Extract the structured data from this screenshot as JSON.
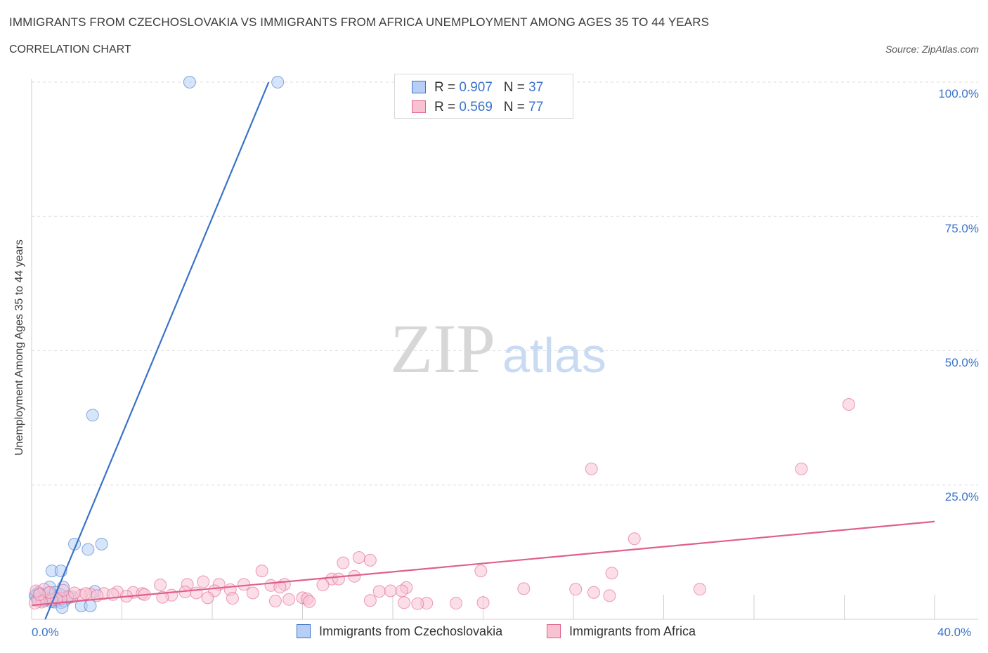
{
  "title": "IMMIGRANTS FROM CZECHOSLOVAKIA VS IMMIGRANTS FROM AFRICA UNEMPLOYMENT AMONG AGES 35 TO 44 YEARS",
  "subtitle": "CORRELATION CHART",
  "source": "Source: ZipAtlas.com",
  "watermark": {
    "zip": "ZIP",
    "atlas": "atlas"
  },
  "legend": {
    "r_label": "R =",
    "n_label": "N =",
    "items": [
      {
        "name": "Immigrants from Czechoslovakia",
        "r": "0.907",
        "n": "37",
        "color": "#3a73c8",
        "fill": "#b7cff5"
      },
      {
        "name": "Immigrants from Africa",
        "r": "0.569",
        "n": "77",
        "color": "#e0608a",
        "fill": "#f7c3d3"
      }
    ]
  },
  "chart_data": {
    "type": "scatter",
    "title": "IMMIGRANTS FROM CZECHOSLOVAKIA VS IMMIGRANTS FROM AFRICA UNEMPLOYMENT AMONG AGES 35 TO 44 YEARS",
    "xlabel": "",
    "ylabel": "Unemployment Among Ages 35 to 44 years",
    "xlim": [
      0,
      40
    ],
    "ylim": [
      0,
      100
    ],
    "x_tick_labels": [
      "0.0%",
      "40.0%"
    ],
    "y_tick_labels": [
      "100.0%",
      "75.0%",
      "50.0%",
      "25.0%"
    ],
    "y_ticks": [
      100,
      75,
      50,
      25
    ],
    "series": [
      {
        "name": "Immigrants from Czechoslovakia",
        "color": "#3a73c8",
        "trend": {
          "x": [
            0.6,
            10.5
          ],
          "y": [
            0,
            100
          ]
        },
        "points": [
          [
            7.0,
            100
          ],
          [
            10.9,
            100
          ],
          [
            2.7,
            38
          ],
          [
            1.9,
            14
          ],
          [
            2.5,
            13
          ],
          [
            3.1,
            14
          ],
          [
            0.9,
            9
          ],
          [
            1.3,
            9
          ],
          [
            1.4,
            6
          ],
          [
            0.8,
            6
          ],
          [
            0.3,
            5
          ],
          [
            0.5,
            4.5
          ],
          [
            0.2,
            4.3
          ],
          [
            0.6,
            4.2
          ],
          [
            0.9,
            4.5
          ],
          [
            1.1,
            4.0
          ],
          [
            0.4,
            3.9
          ],
          [
            0.7,
            3.8
          ],
          [
            1.2,
            3.6
          ],
          [
            1.5,
            3.8
          ],
          [
            1.6,
            4.3
          ],
          [
            1.0,
            3.2
          ],
          [
            1.3,
            3.1
          ],
          [
            0.15,
            4.4
          ],
          [
            0.25,
            3.7
          ],
          [
            0.35,
            4.8
          ],
          [
            0.55,
            3.5
          ],
          [
            0.75,
            4.9
          ],
          [
            0.85,
            3.3
          ],
          [
            1.05,
            5.0
          ],
          [
            1.25,
            4.6
          ],
          [
            1.45,
            3.4
          ],
          [
            1.7,
            4.1
          ],
          [
            1.35,
            2.2
          ],
          [
            2.2,
            2.5
          ],
          [
            2.6,
            2.5
          ],
          [
            2.8,
            5.2
          ]
        ]
      },
      {
        "name": "Immigrants from Africa",
        "color": "#e0608a",
        "trend": {
          "x": [
            0,
            40
          ],
          "y": [
            2.6,
            18.2
          ]
        },
        "points": [
          [
            36.2,
            40
          ],
          [
            24.8,
            28
          ],
          [
            34.1,
            28
          ],
          [
            26.7,
            15
          ],
          [
            14.5,
            11.5
          ],
          [
            15.0,
            11
          ],
          [
            13.8,
            10.5
          ],
          [
            10.2,
            9
          ],
          [
            19.9,
            9
          ],
          [
            25.7,
            8.6
          ],
          [
            14.3,
            8
          ],
          [
            13.3,
            7.5
          ],
          [
            13.6,
            7.5
          ],
          [
            7.6,
            7
          ],
          [
            6.9,
            6.5
          ],
          [
            8.3,
            6.5
          ],
          [
            9.4,
            6.5
          ],
          [
            11.2,
            6.5
          ],
          [
            5.7,
            6.4
          ],
          [
            12.9,
            6.4
          ],
          [
            10.6,
            6.3
          ],
          [
            11.0,
            6.0
          ],
          [
            16.6,
            5.9
          ],
          [
            21.8,
            5.7
          ],
          [
            24.1,
            5.6
          ],
          [
            29.6,
            5.6
          ],
          [
            8.8,
            5.5
          ],
          [
            8.1,
            5.3
          ],
          [
            15.9,
            5.3
          ],
          [
            16.4,
            5.3
          ],
          [
            15.4,
            5.2
          ],
          [
            6.8,
            5.1
          ],
          [
            3.8,
            5.1
          ],
          [
            4.5,
            5.0
          ],
          [
            24.9,
            5.0
          ],
          [
            7.3,
            4.9
          ],
          [
            9.8,
            4.9
          ],
          [
            3.2,
            4.8
          ],
          [
            4.9,
            4.8
          ],
          [
            2.6,
            4.7
          ],
          [
            3.6,
            4.6
          ],
          [
            5.0,
            4.6
          ],
          [
            2.2,
            4.5
          ],
          [
            6.2,
            4.5
          ],
          [
            2.9,
            4.4
          ],
          [
            25.6,
            4.4
          ],
          [
            4.2,
            4.3
          ],
          [
            1.8,
            4.2
          ],
          [
            1.6,
            4.1
          ],
          [
            5.8,
            4.1
          ],
          [
            7.8,
            4.0
          ],
          [
            12.0,
            4.0
          ],
          [
            1.3,
            3.9
          ],
          [
            8.9,
            3.9
          ],
          [
            1.1,
            3.8
          ],
          [
            12.2,
            3.8
          ],
          [
            11.4,
            3.7
          ],
          [
            0.6,
            3.6
          ],
          [
            0.9,
            3.6
          ],
          [
            15.0,
            3.5
          ],
          [
            10.8,
            3.4
          ],
          [
            12.3,
            3.3
          ],
          [
            0.3,
            3.4
          ],
          [
            0.45,
            3.2
          ],
          [
            20.0,
            3.1
          ],
          [
            16.5,
            3.1
          ],
          [
            18.8,
            3.0
          ],
          [
            17.5,
            3.0
          ],
          [
            17.1,
            2.9
          ],
          [
            0.15,
            3.0
          ],
          [
            0.2,
            5.3
          ],
          [
            0.55,
            5.6
          ],
          [
            1.4,
            5.4
          ],
          [
            0.8,
            5.0
          ],
          [
            1.9,
            4.9
          ],
          [
            2.4,
            4.8
          ],
          [
            0.35,
            4.6
          ]
        ]
      }
    ]
  }
}
